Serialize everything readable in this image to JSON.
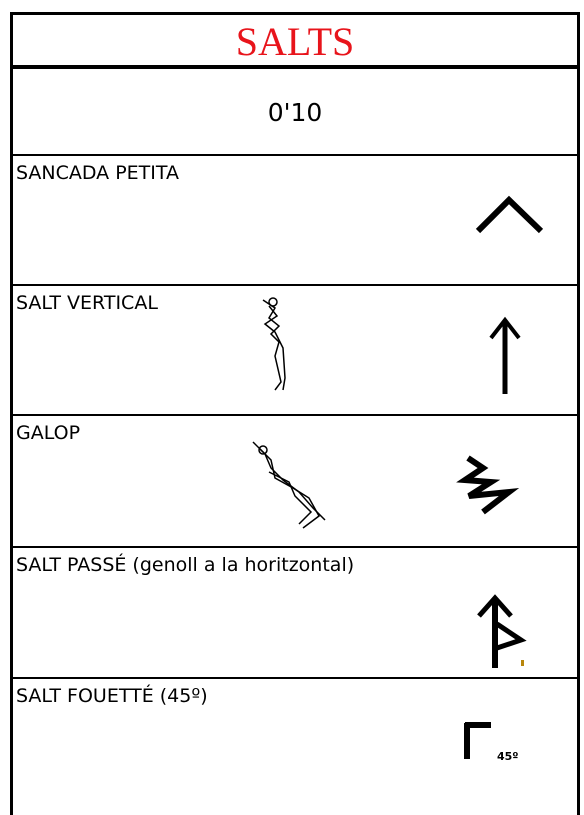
{
  "header": {
    "title": "SALTS"
  },
  "score": "0'10",
  "rows": [
    {
      "label": "SANCADA PETITA"
    },
    {
      "label": "SALT VERTICAL"
    },
    {
      "label": "GALOP"
    },
    {
      "label": "SALT PASSÉ (genoll a la horitzontal)"
    },
    {
      "label": "SALT FOUETTÉ (45º)",
      "symbol_text": "45º"
    }
  ]
}
